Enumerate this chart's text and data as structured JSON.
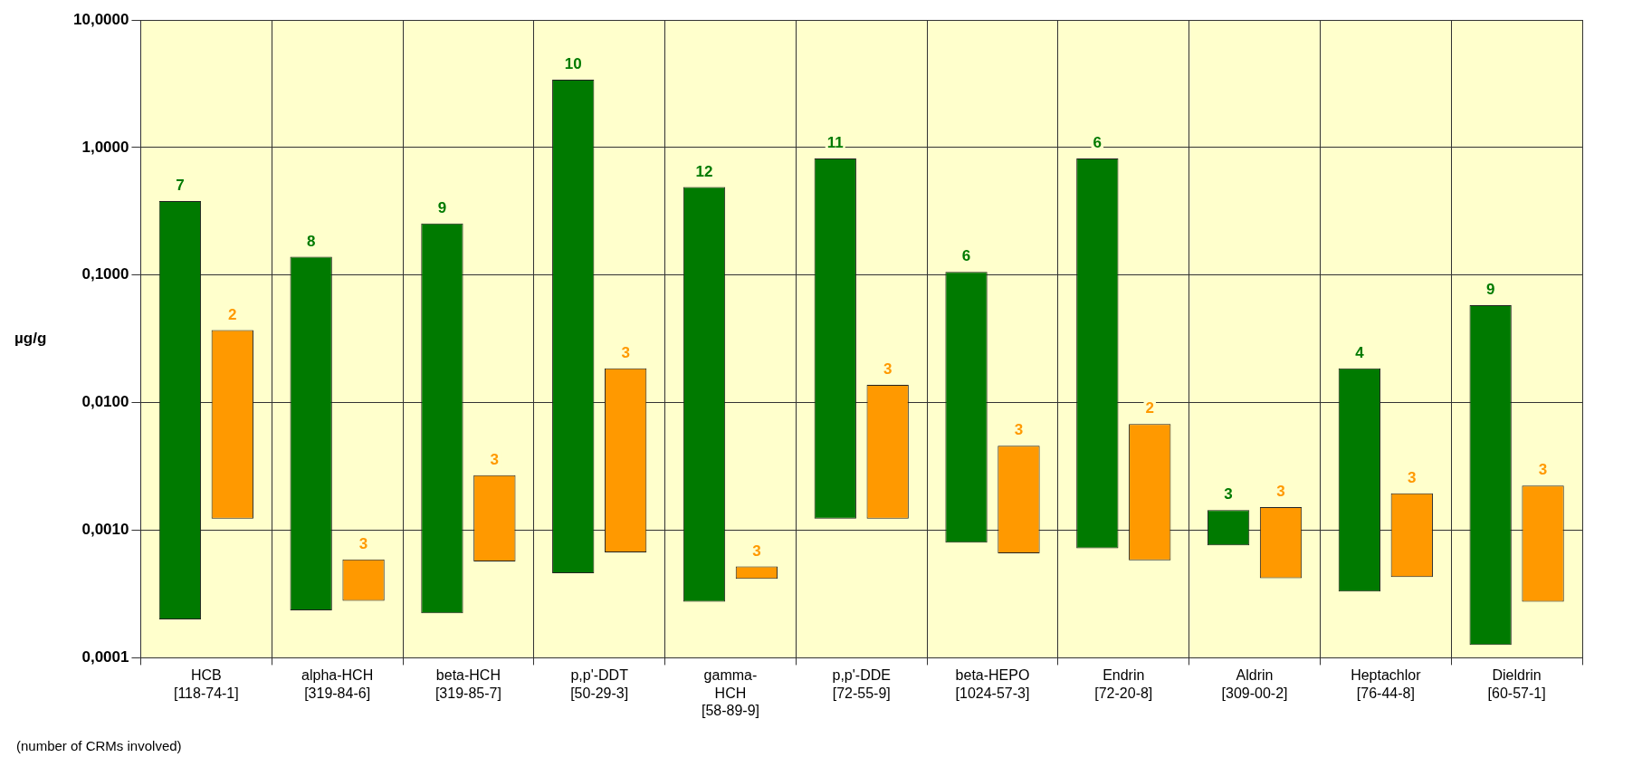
{
  "chart_data": {
    "type": "bar",
    "ylabel": "µg/g",
    "log": "y",
    "grid": true,
    "legend": false,
    "categories": [
      "HCB\n[118-74-1]",
      "alpha-HCH\n[319-84-6]",
      "beta-HCH\n[319-85-7]",
      "p,p'-DDT\n[50-29-3]",
      "gamma-\nHCH\n[58-89-9]",
      "p,p'-DDE\n[72-55-9]",
      "beta-HEPO\n[1024-57-3]",
      "Endrin\n[72-20-8]",
      "Aldrin\n[309-00-2]",
      "Heptachlor\n[76-44-8]",
      "Dieldrin\n[60-57-1]"
    ],
    "ylim": [
      0.0001,
      10
    ],
    "yticks": [
      {
        "value": 0.0001,
        "label": "0,0001"
      },
      {
        "value": 0.001,
        "label": "0,0010"
      },
      {
        "value": 0.01,
        "label": "0,0100"
      },
      {
        "value": 0.1,
        "label": "0,1000"
      },
      {
        "value": 1,
        "label": "1,0000"
      },
      {
        "value": 10,
        "label": "10,0000"
      }
    ],
    "series": [
      {
        "color": "#007a00",
        "base": [
          0.0002,
          0.000235,
          0.000223,
          0.00046,
          0.000275,
          0.00123,
          0.0008,
          0.00072,
          0.00076,
          0.00033,
          0.000126
        ],
        "values": [
          0.3798,
          0.138765,
          0.253777,
          3.39954,
          0.489725,
          0.81877,
          0.1052,
          0.81928,
          0.00068,
          0.01827,
          0.057874
        ]
      },
      {
        "color": "#ff9900",
        "base": [
          0.00123,
          0.00028,
          0.00057,
          0.00067,
          0.000415,
          0.00123,
          0.00066,
          0.00058,
          0.00042,
          0.00043,
          0.000275
        ],
        "values": [
          0.03577,
          0.00031,
          0.00213,
          0.01793,
          0.000105,
          0.01257,
          0.00394,
          0.00622,
          0.0011,
          0.00152,
          0.001965
        ]
      }
    ],
    "annotations": [
      "7",
      "2",
      "8",
      "3",
      "9",
      "3",
      "10",
      "3",
      "12",
      "3",
      "11",
      "3",
      "6",
      "3",
      "6",
      "2",
      "3",
      "3",
      "4",
      "3",
      "9",
      "3",
      "(number of CRMs involved)"
    ]
  }
}
